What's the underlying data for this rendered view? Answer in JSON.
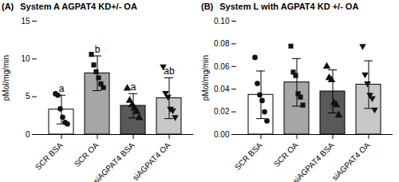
{
  "chart_data": [
    {
      "type": "bar",
      "panel_label": "(A)",
      "title": "System A AGPAT4 KD+/- OA",
      "y_label": "pMol/mg/min",
      "categories": [
        "SCR BSA",
        "SCR OA",
        "siAGPAT4 BSA",
        "siAGPAT4 OA"
      ],
      "values": [
        3.3,
        8.1,
        3.8,
        4.8
      ],
      "errors": [
        1.9,
        2.3,
        1.6,
        2.7
      ],
      "points": [
        [
          5.4,
          5.2,
          3.4,
          2.3,
          1.6,
          1.4
        ],
        [
          10.6,
          9.2,
          8.3,
          7.5,
          6.7,
          6.2
        ],
        [
          6.1,
          4.5,
          3.9,
          3.5,
          3.0,
          2.2
        ],
        [
          9.0,
          5.5,
          5.0,
          3.4,
          3.2,
          2.3
        ]
      ],
      "annotations": [
        "a",
        "b",
        "a",
        "ab"
      ],
      "colors": [
        "#ffffff",
        "#a6a6a6",
        "#595959",
        "#c8c8c8"
      ],
      "ylim": [
        0,
        15
      ],
      "yticks": [
        0,
        5,
        10,
        15
      ]
    },
    {
      "type": "bar",
      "panel_label": "(B)",
      "title": "System L with AGPAT4 KD +/- OA",
      "y_label": "pMol/mg/min",
      "categories": [
        "SCR BSA",
        "SCR OA",
        "siAGPAT4 BSA",
        "siAGPAT4 OA"
      ],
      "values": [
        0.035,
        0.046,
        0.038,
        0.044
      ],
      "errors": [
        0.021,
        0.021,
        0.019,
        0.021
      ],
      "points": [
        [
          0.068,
          0.045,
          0.035,
          0.03,
          0.02,
          0.012
        ],
        [
          0.078,
          0.055,
          0.052,
          0.036,
          0.033,
          0.026
        ],
        [
          0.06,
          0.05,
          0.048,
          0.028,
          0.026,
          0.017
        ],
        [
          0.078,
          0.053,
          0.045,
          0.035,
          0.032,
          0.022
        ]
      ],
      "colors": [
        "#ffffff",
        "#a6a6a6",
        "#595959",
        "#c8c8c8"
      ],
      "ylim": [
        0,
        0.1
      ],
      "yticks": [
        {
          "value": 0,
          "label": "0.00"
        },
        {
          "value": 0.02,
          "label": "0.02"
        },
        {
          "value": 0.04,
          "label": "0.04"
        },
        {
          "value": 0.06,
          "label": "0.06"
        },
        {
          "value": 0.08,
          "label": "0.08"
        },
        {
          "value": 0.1,
          "label": "0.10"
        }
      ]
    }
  ]
}
